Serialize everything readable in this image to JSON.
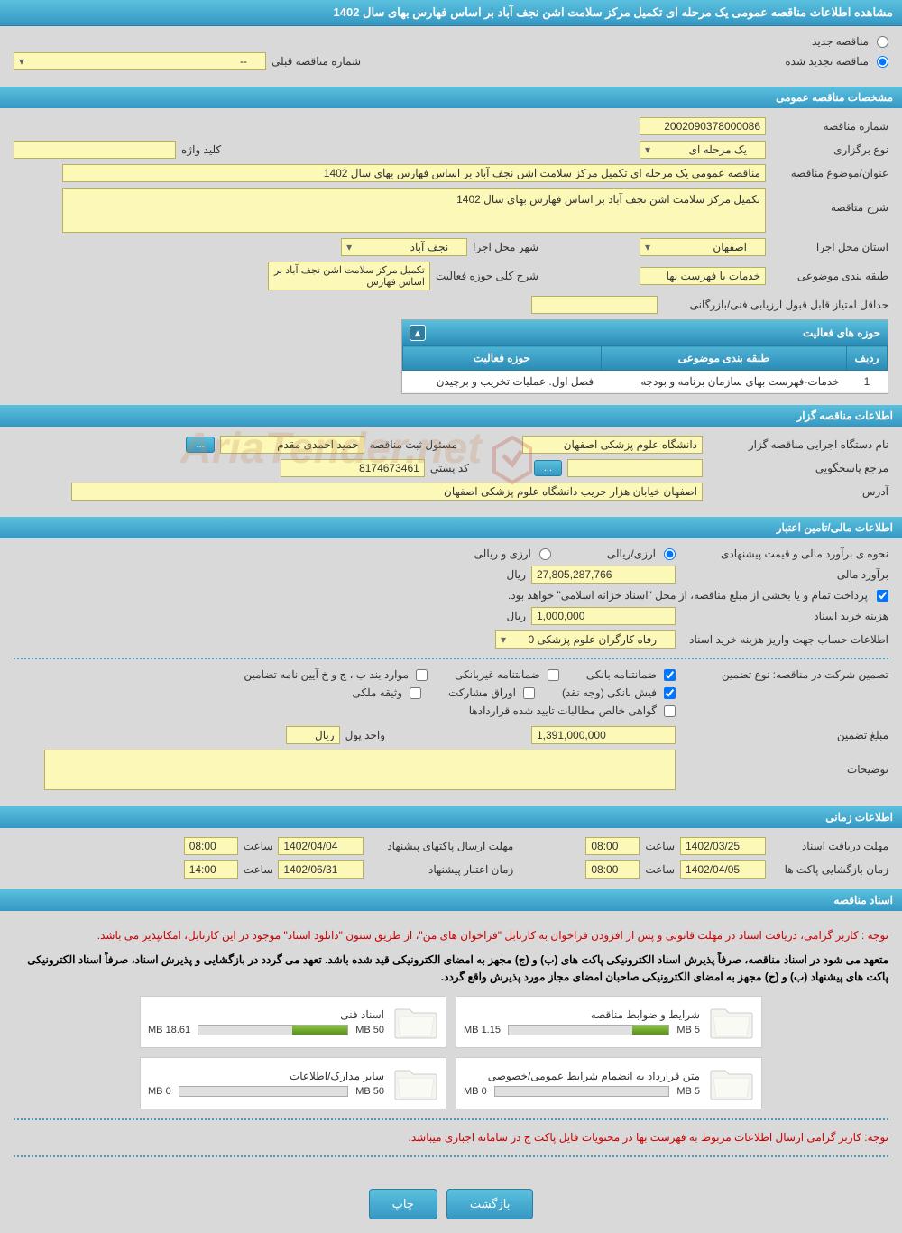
{
  "header": {
    "title": "مشاهده اطلاعات مناقصه عمومی یک مرحله ای تکمیل مرکز سلامت اشن نجف آباد بر اساس فهارس بهای سال 1402"
  },
  "top_radios": {
    "new_tender": "مناقصه جدید",
    "renewed_tender": "مناقصه تجدید شده",
    "prev_number_label": "شماره مناقصه قبلی",
    "prev_number_value": "--"
  },
  "sections": {
    "general": {
      "title": "مشخصات مناقصه عمومی",
      "tender_number_label": "شماره مناقصه",
      "tender_number": "2002090378000086",
      "holding_type_label": "نوع برگزاری",
      "holding_type": "یک مرحله ای",
      "keyword_label": "کلید واژه",
      "keyword": "",
      "subject_label": "عنوان/موضوع مناقصه",
      "subject": "مناقصه عمومی یک مرحله ای  تکمیل مرکز سلامت اشن نجف آباد بر اساس فهارس بهای سال 1402",
      "desc_label": "شرح مناقصه",
      "desc": "تکمیل مرکز سلامت اشن نجف آباد بر اساس فهارس بهای سال 1402",
      "province_label": "استان محل اجرا",
      "province": "اصفهان",
      "city_label": "شهر محل اجرا",
      "city": "نجف آباد",
      "category_label": "طبقه بندی موضوعی",
      "category": "خدمات با فهرست بها",
      "activity_desc_label": "شرح کلی حوزه فعالیت",
      "activity_desc": "تکمیل مرکز سلامت اشن نجف آباد بر اساس فهارس",
      "min_score_label": "حداقل امتیاز قابل قبول ارزیابی فنی/بازرگانی",
      "min_score": "",
      "activities_table": {
        "title": "حوزه های فعالیت",
        "cols": [
          "ردیف",
          "طبقه بندی موضوعی",
          "حوزه فعالیت"
        ],
        "rows": [
          [
            "1",
            "خدمات-فهرست بهای سازمان برنامه و بودجه",
            "فصل اول. عملیات تخریب و برچیدن"
          ]
        ]
      }
    },
    "organizer": {
      "title": "اطلاعات مناقصه گزار",
      "org_label": "نام دستگاه اجرایی مناقصه گزار",
      "org": "دانشگاه علوم پزشکی اصفهان",
      "responsible_label": "مسئول ثبت مناقصه",
      "responsible": "حمید احمدی مقدم",
      "btn_more": "...",
      "referee_label": "مرجع پاسخگویی",
      "referee": "",
      "btn_referee": "...",
      "postal_label": "کد پستی",
      "postal": "8174673461",
      "address_label": "آدرس",
      "address": "اصفهان خیابان هزار جریب دانشگاه علوم پزشکی اصفهان"
    },
    "financial": {
      "title": "اطلاعات مالی/تامین اعتبار",
      "estimate_method_label": "نحوه ی برآورد مالی  و  قیمت پیشنهادی",
      "currency_rial": "ارزی/ریالی",
      "currency_both": "ارزی و ریالی",
      "estimate_label": "برآورد مالی",
      "estimate": "27,805,287,766",
      "unit_rial": "ریال",
      "payment_note": "پرداخت تمام و یا بخشی از مبلغ مناقصه، از محل \"اسناد خزانه اسلامی\" خواهد بود.",
      "doc_fee_label": "هزینه خرید اسناد",
      "doc_fee": "1,000,000",
      "account_label": "اطلاعات حساب جهت واریز هزینه خرید اسناد",
      "account": "رفاه کارگران علوم پزشکی 0",
      "guarantee_label": "تضمین شرکت در مناقصه:   نوع تضمین",
      "g1": "ضمانتنامه بانکی",
      "g2": "ضمانتنامه غیربانکی",
      "g3": "موارد بند ب ، ج و خ آیین نامه تضامین",
      "g4": "فیش بانکی (وجه نقد)",
      "g5": "اوراق مشارکت",
      "g6": "وثیقه ملکی",
      "g7": "گواهی خالص مطالبات تایید شده قراردادها",
      "guarantee_amount_label": "مبلغ تضمین",
      "guarantee_amount": "1,391,000,000",
      "money_unit_label": "واحد پول",
      "money_unit": "ریال",
      "notes_label": "توضیحات",
      "notes": ""
    },
    "timing": {
      "title": "اطلاعات زمانی",
      "receive_deadline_label": "مهلت دریافت اسناد",
      "receive_deadline_date": "1402/03/25",
      "receive_deadline_time": "08:00",
      "open_time_label": "زمان بازگشایی پاکت ها",
      "open_date": "1402/04/05",
      "open_time": "08:00",
      "send_deadline_label": "مهلت ارسال پاکتهای پیشنهاد",
      "send_deadline_date": "1402/04/04",
      "send_deadline_time": "08:00",
      "validity_label": "زمان اعتبار پیشنهاد",
      "validity_date": "1402/06/31",
      "validity_time": "14:00",
      "time_label": "ساعت"
    },
    "documents": {
      "title": "اسناد مناقصه",
      "notice1": "توجه : کاربر گرامی، دریافت اسناد در مهلت قانونی و پس از افزودن فراخوان به کارتابل \"فراخوان های من\"، از طریق ستون \"دانلود اسناد\" موجود در این کارتابل، امکانپذیر می باشد.",
      "notice2": "متعهد می شود در اسناد مناقصه، صرفاً پذیرش اسناد الکترونیکی پاکت های (ب) و (ج) مجهز به امضای الکترونیکی قید شده باشد. تعهد می گردد در بازگشایی و پذیرش اسناد، صرفاً اسناد الکترونیکی پاکت های پیشنهاد (ب) و (ج) مجهز به امضای الکترونیکی صاحبان امضای مجاز مورد پذیرش واقع گردد.",
      "docs": [
        {
          "title": "شرایط و ضوابط مناقصه",
          "used": "1.15 MB",
          "total": "5 MB",
          "pct": 23
        },
        {
          "title": "اسناد فنی",
          "used": "18.61 MB",
          "total": "50 MB",
          "pct": 37
        },
        {
          "title": "متن قرارداد به انضمام شرایط عمومی/خصوصی",
          "used": "0 MB",
          "total": "5 MB",
          "pct": 0
        },
        {
          "title": "سایر مدارک/اطلاعات",
          "used": "0 MB",
          "total": "50 MB",
          "pct": 0
        }
      ],
      "notice3": "توجه: کاربر گرامی ارسال اطلاعات مربوط به فهرست بها در محتویات فایل پاکت ج در سامانه اجباری میباشد."
    }
  },
  "footer": {
    "back": "بازگشت",
    "print": "چاپ"
  },
  "watermark": "AriaTender.net",
  "colors": {
    "header_grad_top": "#5bc0de",
    "header_grad_bot": "#3598c4",
    "field_bg": "#fcf8b8",
    "body_bg": "#d9d9d9"
  }
}
